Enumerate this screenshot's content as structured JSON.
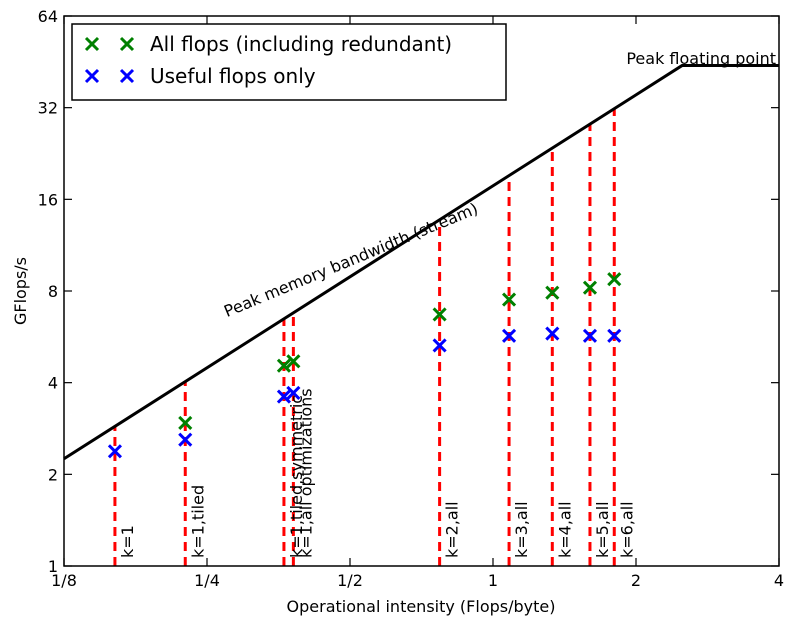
{
  "chart_data": {
    "type": "scatter",
    "title": "",
    "xlabel": "Operational intensity (Flops/byte)",
    "ylabel": "GFlops/s",
    "x_scale": "log2",
    "y_scale": "log2",
    "xlim": [
      0.125,
      4
    ],
    "ylim": [
      1,
      64
    ],
    "x_ticks": [
      {
        "value": 0.125,
        "label": "1/8"
      },
      {
        "value": 0.25,
        "label": "1/4"
      },
      {
        "value": 0.5,
        "label": "1/2"
      },
      {
        "value": 1,
        "label": "1"
      },
      {
        "value": 2,
        "label": "2"
      },
      {
        "value": 4,
        "label": "4"
      }
    ],
    "y_ticks": [
      {
        "value": 1,
        "label": "1"
      },
      {
        "value": 2,
        "label": "2"
      },
      {
        "value": 4,
        "label": "4"
      },
      {
        "value": 8,
        "label": "8"
      },
      {
        "value": 16,
        "label": "16"
      },
      {
        "value": 32,
        "label": "32"
      },
      {
        "value": 64,
        "label": "64"
      }
    ],
    "grid": false,
    "legend_position": "top-left",
    "roofline": {
      "bandwidth_label": "Peak memory bandwidth (stream)",
      "peak_label": "Peak floating point",
      "points": [
        [
          0.125,
          2.25
        ],
        [
          2.5,
          44
        ],
        [
          4,
          44
        ]
      ],
      "color": "#000000"
    },
    "vertical_markers": [
      {
        "x": 0.16,
        "label": "k=1"
      },
      {
        "x": 0.225,
        "label": "k=1,tiled"
      },
      {
        "x": 0.363,
        "label": "k=1,tiled,symmetric"
      },
      {
        "x": 0.38,
        "label": "k=1,all optimizations"
      },
      {
        "x": 0.772,
        "label": "k=2,all"
      },
      {
        "x": 1.081,
        "label": "k=3,all"
      },
      {
        "x": 1.333,
        "label": "k=4,all"
      },
      {
        "x": 1.6,
        "label": "k=5,all"
      },
      {
        "x": 1.8,
        "label": "k=6,all"
      }
    ],
    "marker_color": "#ff0000",
    "series": [
      {
        "name": "All flops (including redundant)",
        "color": "#008000",
        "marker": "x",
        "x": [
          0.225,
          0.363,
          0.38,
          0.772,
          1.081,
          1.333,
          1.6,
          1.8
        ],
        "y": [
          2.95,
          4.55,
          4.7,
          6.7,
          7.5,
          7.9,
          8.2,
          8.75
        ]
      },
      {
        "name": "Useful flops only",
        "color": "#0000ff",
        "marker": "x",
        "x": [
          0.16,
          0.225,
          0.363,
          0.38,
          0.772,
          1.081,
          1.333,
          1.6,
          1.8
        ],
        "y": [
          2.38,
          2.6,
          3.6,
          3.7,
          5.3,
          5.7,
          5.8,
          5.7,
          5.7
        ]
      }
    ]
  }
}
